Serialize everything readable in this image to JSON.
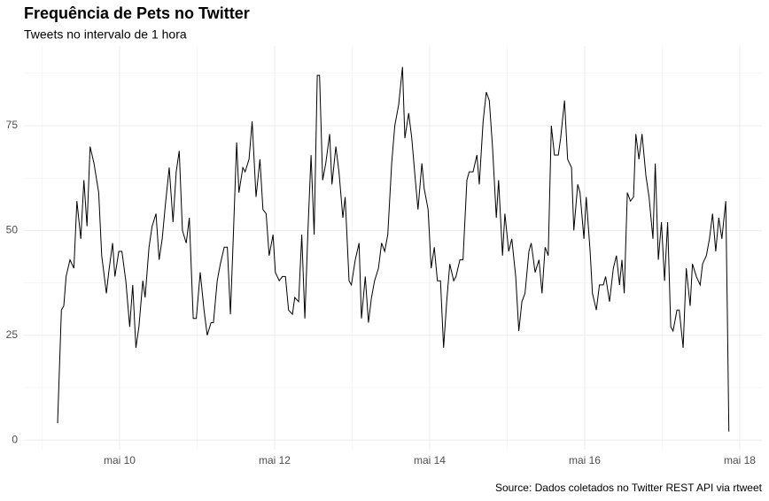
{
  "chart_data": {
    "type": "line",
    "title": "Frequência de Pets no Twitter",
    "subtitle": "Tweets no intervalo de 1 hora",
    "caption": "Source: Dados coletados no Twitter REST API via rtweet",
    "x": [
      9.2,
      9.25,
      9.28,
      9.31,
      9.36,
      9.41,
      9.45,
      9.5,
      9.54,
      9.58,
      9.62,
      9.67,
      9.73,
      9.77,
      9.83,
      9.86,
      9.91,
      9.94,
      9.99,
      10.03,
      10.08,
      10.13,
      10.17,
      10.21,
      10.25,
      10.3,
      10.33,
      10.38,
      10.42,
      10.47,
      10.51,
      10.55,
      10.59,
      10.64,
      10.69,
      10.73,
      10.77,
      10.81,
      10.86,
      10.9,
      10.95,
      10.99,
      11.04,
      11.09,
      11.13,
      11.18,
      11.21,
      11.26,
      11.3,
      11.35,
      11.39,
      11.43,
      11.47,
      11.51,
      11.54,
      11.59,
      11.62,
      11.67,
      11.71,
      11.76,
      11.81,
      11.85,
      11.89,
      11.93,
      11.98,
      12.01,
      12.06,
      12.1,
      12.14,
      12.18,
      12.23,
      12.26,
      12.31,
      12.35,
      12.39,
      12.43,
      12.47,
      12.51,
      12.55,
      12.58,
      12.62,
      12.66,
      12.71,
      12.74,
      12.79,
      12.83,
      12.88,
      12.91,
      12.96,
      12.99,
      13.04,
      13.09,
      13.12,
      13.17,
      13.21,
      13.25,
      13.29,
      13.34,
      13.38,
      13.42,
      13.46,
      13.51,
      13.55,
      13.6,
      13.65,
      13.68,
      13.73,
      13.77,
      13.81,
      13.85,
      13.9,
      13.93,
      13.98,
      14.02,
      14.06,
      14.1,
      14.14,
      14.18,
      14.22,
      14.26,
      14.31,
      14.34,
      14.39,
      14.43,
      14.48,
      14.51,
      14.56,
      14.61,
      14.64,
      14.69,
      14.73,
      14.77,
      14.81,
      14.86,
      14.89,
      14.94,
      14.97,
      15.02,
      15.06,
      15.11,
      15.15,
      15.19,
      15.23,
      15.28,
      15.31,
      15.36,
      15.41,
      15.45,
      15.49,
      15.53,
      15.57,
      15.61,
      15.66,
      15.69,
      15.74,
      15.78,
      15.83,
      15.86,
      15.91,
      15.94,
      15.99,
      16.02,
      16.07,
      16.1,
      16.15,
      16.19,
      16.24,
      16.27,
      16.32,
      16.37,
      16.41,
      16.45,
      16.48,
      16.51,
      16.55,
      16.59,
      16.63,
      16.66,
      16.7,
      16.74,
      16.79,
      16.83,
      16.88,
      16.91,
      16.95,
      16.99,
      17.03,
      17.07,
      17.11,
      17.14,
      17.19,
      17.22,
      17.27,
      17.31,
      17.36,
      17.39,
      17.44,
      17.49,
      17.52,
      17.57,
      17.61,
      17.65,
      17.69,
      17.73,
      17.77,
      17.82,
      17.84,
      17.86
    ],
    "series": [
      {
        "name": "Tweets",
        "color": "#000000",
        "values": [
          4,
          31,
          32,
          39,
          43,
          41,
          57,
          48,
          62,
          51,
          70,
          66,
          59,
          44,
          35,
          40,
          47,
          39,
          45,
          45,
          38,
          27,
          37,
          22,
          27,
          38,
          34,
          46,
          51,
          54,
          43,
          48,
          56,
          65,
          52,
          64,
          69,
          50,
          47,
          53,
          29,
          29,
          40,
          31,
          25,
          28,
          28,
          38,
          42,
          46,
          46,
          30,
          50,
          71,
          59,
          65,
          64,
          67,
          76,
          58,
          67,
          55,
          54,
          44,
          49,
          40,
          38,
          39,
          39,
          31,
          30,
          34,
          33,
          49,
          29,
          50,
          68,
          49,
          87,
          87,
          62,
          66,
          73,
          61,
          70,
          64,
          53,
          58,
          38,
          37,
          43,
          47,
          29,
          39,
          28,
          34,
          38,
          41,
          47,
          45,
          49,
          66,
          75,
          80,
          89,
          72,
          78,
          72,
          63,
          55,
          66,
          60,
          55,
          41,
          46,
          38,
          38,
          22,
          33,
          42,
          38,
          39,
          43,
          43,
          62,
          64,
          64,
          68,
          61,
          76,
          83,
          81,
          70,
          53,
          62,
          44,
          54,
          45,
          48,
          39,
          26,
          33,
          35,
          45,
          47,
          40,
          43,
          35,
          46,
          44,
          75,
          68,
          68,
          72,
          81,
          67,
          65,
          50,
          61,
          59,
          48,
          58,
          45,
          35,
          31,
          37,
          37,
          39,
          33,
          41,
          44,
          37,
          43,
          35,
          59,
          57,
          58,
          73,
          67,
          73,
          63,
          58,
          48,
          66,
          43,
          52,
          38,
          52,
          27,
          26,
          31,
          31,
          22,
          41,
          32,
          42,
          39,
          37,
          42,
          44,
          48,
          54,
          45,
          53,
          48,
          57,
          30,
          2
        ]
      }
    ],
    "xlim": [
      8.766,
      18.286
    ],
    "xticks": [
      {
        "value": 10,
        "label": "mai 10"
      },
      {
        "value": 12,
        "label": "mai 12"
      },
      {
        "value": 14,
        "label": "mai 14"
      },
      {
        "value": 16,
        "label": "mai 16"
      },
      {
        "value": 18,
        "label": "mai 18"
      }
    ],
    "xminorticks": [
      9,
      11,
      13,
      15,
      17
    ],
    "ylim": [
      -2.3,
      94
    ],
    "yticks": [
      0,
      25,
      50,
      75
    ],
    "yminorticks": [
      12.5,
      37.5,
      62.5,
      87.5
    ],
    "grid": true
  }
}
